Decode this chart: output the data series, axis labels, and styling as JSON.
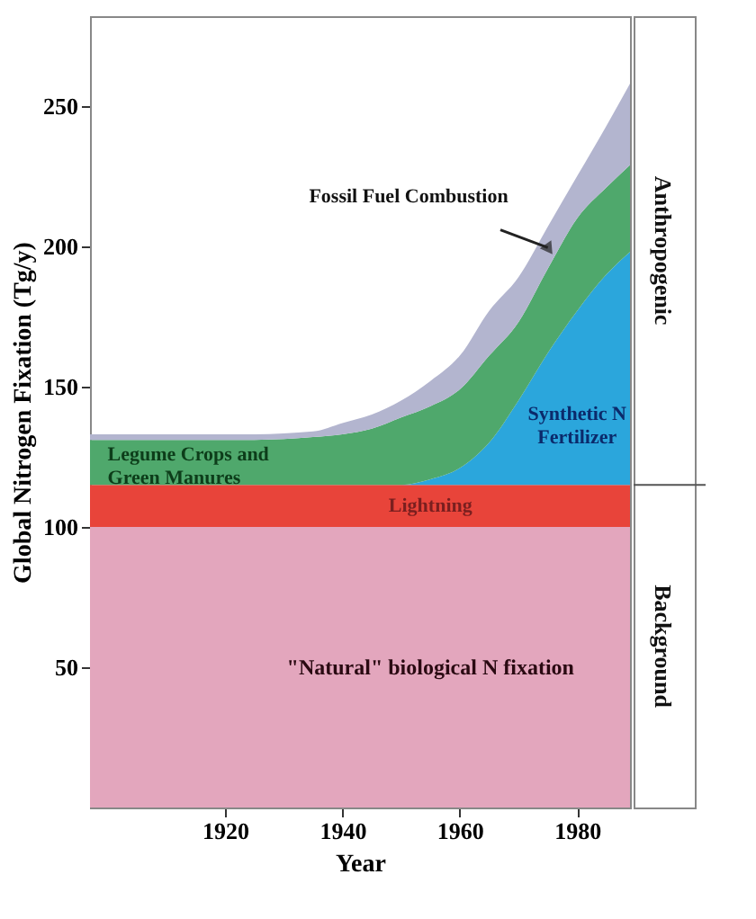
{
  "chart_data": {
    "type": "area",
    "stacked": true,
    "xlabel": "Year",
    "ylabel": "Global Nitrogen Fixation (Tg/y)",
    "x": [
      1897,
      1910,
      1925,
      1935,
      1940,
      1945,
      1950,
      1955,
      1960,
      1965,
      1970,
      1975,
      1980,
      1985,
      1989
    ],
    "series": [
      {
        "name": "\"Natural\" biological N fixation",
        "color": "#e3a6bd",
        "values": [
          100,
          100,
          100,
          100,
          100,
          100,
          100,
          100,
          100,
          100,
          100,
          100,
          100,
          100,
          100
        ]
      },
      {
        "name": "Lightning",
        "color": "#e8443a",
        "values": [
          15,
          15,
          15,
          15,
          15,
          15,
          15,
          15,
          15,
          15,
          15,
          15,
          15,
          15,
          15
        ]
      },
      {
        "name": "Synthetic N\nFertilizer",
        "color": "#2ba6dc",
        "values": [
          0,
          0,
          0,
          0,
          0,
          0,
          0,
          2,
          6,
          15,
          30,
          47,
          62,
          75,
          83
        ]
      },
      {
        "name": "Legume Crops and\nGreen Manures",
        "color": "#4fa86c",
        "values": [
          16,
          16,
          16,
          17,
          18,
          20,
          24,
          26,
          28,
          31,
          28,
          30,
          33,
          31,
          31
        ]
      },
      {
        "name": "Fossil Fuel Combustion",
        "color": "#b3b5cf",
        "values": [
          2,
          2,
          2,
          2,
          4,
          5,
          6,
          9,
          12,
          16,
          16,
          15,
          15,
          22,
          29
        ]
      }
    ],
    "xlim": [
      1897,
      1989
    ],
    "xticks": [
      1920,
      1940,
      1960,
      1980
    ],
    "ylim": [
      0,
      282
    ],
    "yticks": [
      50,
      100,
      150,
      200,
      250
    ],
    "grid": false,
    "annotations": [
      "Anthropogenic",
      "Background"
    ]
  }
}
